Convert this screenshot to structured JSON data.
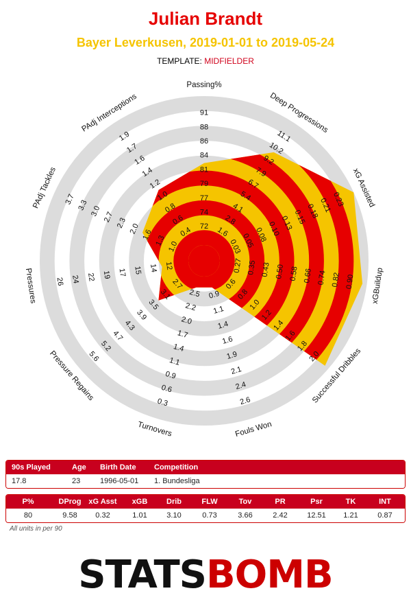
{
  "header": {
    "player": "Julian Brandt",
    "team_dates": "Bayer Leverkusen, 2019-01-01 to 2019-05-24",
    "template_label": "TEMPLATE:",
    "template_value": "MIDFIELDER"
  },
  "chart_data": {
    "type": "radar",
    "rings": 5,
    "colors": {
      "ring_a": "#e60000",
      "ring_b": "#f5c400",
      "grid": "#dcdcdc",
      "center": "#e60000"
    },
    "metrics": [
      {
        "name": "Passing%",
        "ticks": [
          "72",
          "74",
          "77",
          "79",
          "81",
          "84",
          "86",
          "88",
          "91"
        ],
        "value_fraction": 0.55
      },
      {
        "name": "Deep Progressions",
        "ticks": [
          "1.6",
          "2.8",
          "4.1",
          "5.4",
          "6.7",
          "7.9",
          "9.2",
          "10.2",
          "11.1"
        ],
        "value_fraction": 0.76
      },
      {
        "name": "xG Assisted",
        "ticks": [
          "0.03",
          "0.05",
          "0.08",
          "0.10",
          "0.13",
          "0.15",
          "0.18",
          "0.21",
          "0.23"
        ],
        "value_fraction": 1.0
      },
      {
        "name": "xGBuildup",
        "ticks": [
          "0.27",
          "0.35",
          "0.43",
          "0.50",
          "0.58",
          "0.66",
          "0.74",
          "0.82",
          "0.90"
        ],
        "value_fraction": 0.97
      },
      {
        "name": "Successful Dribbles",
        "ticks": [
          "0.6",
          "0.8",
          "1.0",
          "1.2",
          "1.4",
          "1.6",
          "1.8",
          "2.0"
        ],
        "value_fraction": 0.97
      },
      {
        "name": "Fouls Won",
        "ticks": [
          "0.9",
          "1.1",
          "1.4",
          "1.6",
          "1.9",
          "2.1",
          "2.4",
          "2.6"
        ],
        "value_fraction": 0.08
      },
      {
        "name": "Turnovers",
        "ticks": [
          "2.5",
          "2.2",
          "2.0",
          "1.7",
          "1.4",
          "1.1",
          "0.9",
          "0.6",
          "0.3"
        ],
        "value_fraction": 0.08
      },
      {
        "name": "Pressure Regains",
        "ticks": [
          "2.7",
          "3.1",
          "3.5",
          "3.9",
          "4.3",
          "4.7",
          "5.2",
          "5.6"
        ],
        "value_fraction": 0.3
      },
      {
        "name": "Pressures",
        "ticks": [
          "12",
          "14",
          "15",
          "17",
          "19",
          "22",
          "24",
          "26"
        ],
        "value_fraction": 0.18
      },
      {
        "name": "PAdj Tackles",
        "ticks": [
          "1.0",
          "1.3",
          "1.6",
          "2.0",
          "2.3",
          "2.7",
          "3.0",
          "3.3",
          "3.7"
        ],
        "value_fraction": 0.35
      },
      {
        "name": "PAdj Interceptions",
        "ticks": [
          "0.4",
          "0.6",
          "0.8",
          "1.0",
          "1.2",
          "1.4",
          "1.6",
          "1.7",
          "1.9"
        ],
        "value_fraction": 0.46
      }
    ]
  },
  "info_table": {
    "headers": [
      "90s Played",
      "Age",
      "Birth Date",
      "Competition"
    ],
    "values": [
      "17.8",
      "23",
      "1996-05-01",
      "1. Bundesliga"
    ]
  },
  "stats_table": {
    "headers": [
      "P%",
      "DProg",
      "xG Asst",
      "xGB",
      "Drib",
      "FLW",
      "Tov",
      "PR",
      "Psr",
      "TK",
      "INT"
    ],
    "values": [
      "80",
      "9.58",
      "0.32",
      "1.01",
      "3.10",
      "0.73",
      "3.66",
      "2.42",
      "12.51",
      "1.21",
      "0.87"
    ]
  },
  "footnote": "All units in per 90",
  "logo": {
    "text_a": "STATS",
    "text_b": "BOMB"
  }
}
